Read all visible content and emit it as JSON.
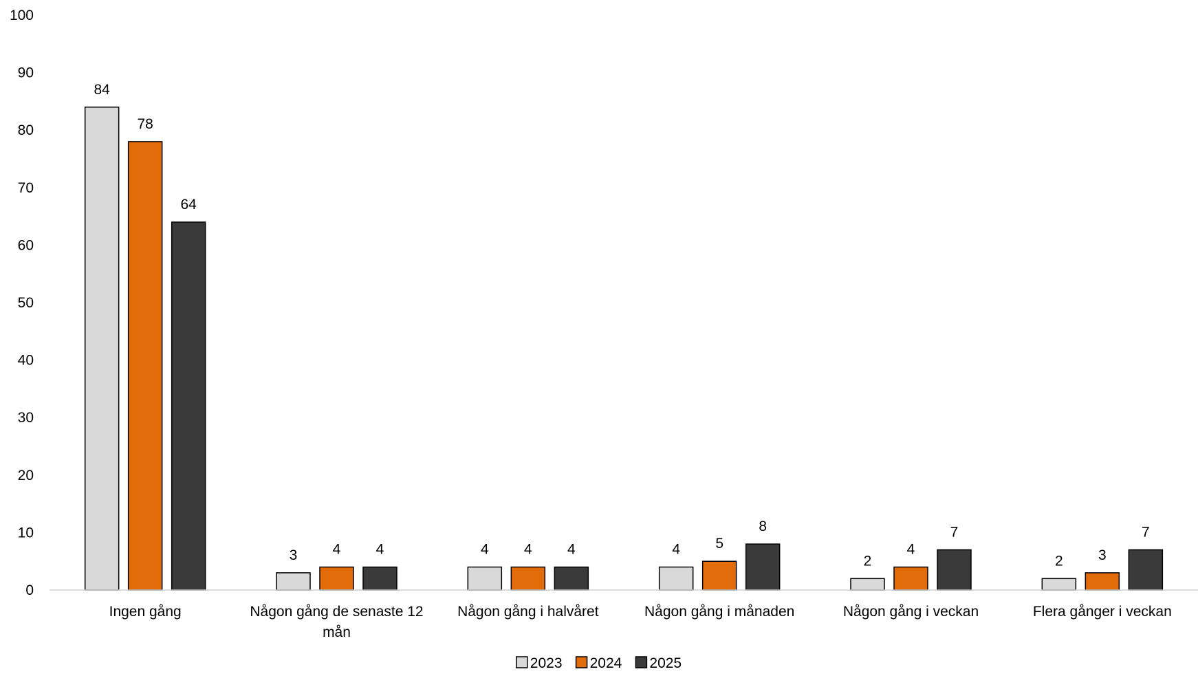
{
  "chart_data": {
    "type": "bar",
    "categories": [
      "Ingen gång",
      "Någon gång de senaste 12 mån",
      "Någon gång i halvåret",
      "Någon gång i månaden",
      "Någon gång i veckan",
      "Flera gånger i veckan"
    ],
    "series": [
      {
        "name": "2023",
        "color": "#d9d9d9",
        "values": [
          84,
          3,
          4,
          4,
          2,
          2
        ]
      },
      {
        "name": "2024",
        "color": "#e36c0a",
        "values": [
          78,
          4,
          4,
          5,
          4,
          3
        ]
      },
      {
        "name": "2025",
        "color": "#3a3a3a",
        "values": [
          64,
          4,
          4,
          8,
          7,
          7
        ]
      }
    ],
    "title": "",
    "xlabel": "",
    "ylabel": "",
    "ylim": [
      0,
      100
    ],
    "yticks": [
      0,
      10,
      20,
      30,
      40,
      50,
      60,
      70,
      80,
      90,
      100
    ],
    "grid": false,
    "legend": "bottom-center",
    "data_labels": true
  }
}
